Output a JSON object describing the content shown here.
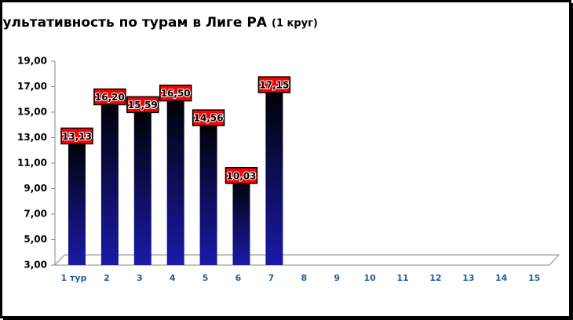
{
  "chart_data": {
    "type": "bar",
    "title": "Средняя результативность по турам в Лиге РА",
    "subtitle": "(1 круг)",
    "categories": [
      "1 тур",
      "2",
      "3",
      "4",
      "5",
      "6",
      "7",
      "8",
      "9",
      "10",
      "11",
      "12",
      "13",
      "14",
      "15"
    ],
    "values": [
      13.13,
      16.2,
      15.59,
      16.5,
      14.56,
      10.03,
      17.15,
      null,
      null,
      null,
      null,
      null,
      null,
      null,
      null
    ],
    "value_labels": [
      "13,13",
      "16,20",
      "15,59",
      "16,50",
      "14,56",
      "10,03",
      "17,15",
      null,
      null,
      null,
      null,
      null,
      null,
      null,
      null
    ],
    "color": "#1a1aa8",
    "label_color": "#ff0000",
    "ylim": [
      3,
      19
    ],
    "yticks": [
      {
        "value": 3,
        "label": "3,00"
      },
      {
        "value": 5,
        "label": "5,00"
      },
      {
        "value": 7,
        "label": "7,00"
      },
      {
        "value": 9,
        "label": "9,00"
      },
      {
        "value": 11,
        "label": "11,00"
      },
      {
        "value": 13,
        "label": "13,00"
      },
      {
        "value": 15,
        "label": "15,00"
      },
      {
        "value": 17,
        "label": "17,00"
      },
      {
        "value": 19,
        "label": "19,00"
      }
    ],
    "grid": false
  }
}
